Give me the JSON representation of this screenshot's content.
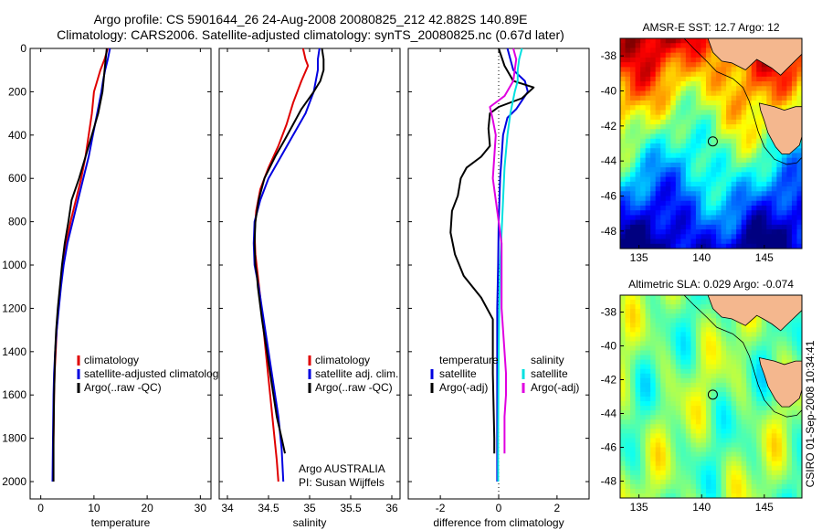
{
  "header": {
    "line1": "Argo profile: CS 5901644_26 24-Aug-2008 20080825_212 42.882S 140.89E",
    "line2": "Climatology: CARS2006. Satellite-adjusted climatology: synTS_20080825.nc (0.67d later)"
  },
  "colors": {
    "climatology": "#e00000",
    "satellite": "#0000e0",
    "argo": "#000000",
    "sal_satellite": "#00e0e0",
    "sal_argo": "#e000e0",
    "land": "#f4b78e"
  },
  "side_text": "CSIRO 01-Sep-2008 10:34:41",
  "chart_data": [
    {
      "type": "line",
      "name": "temperature-profile",
      "xlabel": "temperature",
      "ylabel": "",
      "xlim": [
        -2,
        32
      ],
      "ylim": [
        2080,
        0
      ],
      "xticks": [
        0,
        10,
        20,
        30
      ],
      "yticks": [
        0,
        200,
        400,
        600,
        800,
        1000,
        1200,
        1400,
        1600,
        1800,
        2000
      ],
      "legend": {
        "position": "lower-right",
        "entries": [
          "climatology",
          "satellite-adjusted climatology",
          "Argo(..raw -QC)"
        ]
      },
      "series": [
        {
          "name": "climatology",
          "color": "climatology",
          "points": [
            [
              12.6,
              0
            ],
            [
              12.0,
              50
            ],
            [
              11.2,
              100
            ],
            [
              10.6,
              150
            ],
            [
              10.0,
              200
            ],
            [
              9.6,
              300
            ],
            [
              9.0,
              400
            ],
            [
              8.4,
              500
            ],
            [
              7.6,
              600
            ],
            [
              6.6,
              700
            ],
            [
              5.6,
              800
            ],
            [
              4.8,
              900
            ],
            [
              4.2,
              1000
            ],
            [
              3.7,
              1100
            ],
            [
              3.3,
              1200
            ],
            [
              3.0,
              1300
            ],
            [
              2.8,
              1400
            ],
            [
              2.6,
              1500
            ],
            [
              2.5,
              1600
            ],
            [
              2.4,
              1800
            ],
            [
              2.3,
              2000
            ]
          ]
        },
        {
          "name": "satellite-adjusted climatology",
          "color": "satellite",
          "points": [
            [
              13.0,
              0
            ],
            [
              12.6,
              50
            ],
            [
              12.1,
              100
            ],
            [
              11.7,
              150
            ],
            [
              11.4,
              200
            ],
            [
              10.6,
              300
            ],
            [
              9.8,
              400
            ],
            [
              9.0,
              500
            ],
            [
              8.0,
              600
            ],
            [
              7.0,
              700
            ],
            [
              6.0,
              800
            ],
            [
              5.0,
              900
            ],
            [
              4.3,
              1000
            ],
            [
              3.8,
              1100
            ],
            [
              3.4,
              1200
            ],
            [
              3.0,
              1300
            ],
            [
              2.7,
              1400
            ],
            [
              2.5,
              1500
            ],
            [
              2.4,
              1600
            ],
            [
              2.3,
              1800
            ],
            [
              2.2,
              2000
            ]
          ]
        },
        {
          "name": "Argo(..raw -QC)",
          "color": "argo",
          "points": [
            [
              12.4,
              0
            ],
            [
              12.2,
              50
            ],
            [
              12.0,
              100
            ],
            [
              11.8,
              150
            ],
            [
              11.6,
              200
            ],
            [
              10.8,
              300
            ],
            [
              9.6,
              400
            ],
            [
              8.4,
              500
            ],
            [
              7.2,
              600
            ],
            [
              5.8,
              700
            ],
            [
              5.2,
              800
            ],
            [
              4.5,
              900
            ],
            [
              4.0,
              1000
            ],
            [
              3.6,
              1100
            ],
            [
              3.2,
              1200
            ],
            [
              2.9,
              1300
            ],
            [
              2.7,
              1400
            ],
            [
              2.6,
              1500
            ],
            [
              2.5,
              1600
            ],
            [
              2.4,
              1800
            ],
            [
              2.4,
              2000
            ]
          ]
        }
      ]
    },
    {
      "type": "line",
      "name": "salinity-profile",
      "xlabel": "salinity",
      "ylabel": "",
      "xlim": [
        33.9,
        36.1
      ],
      "ylim": [
        2080,
        0
      ],
      "xticks": [
        34,
        34.5,
        35,
        35.5,
        36
      ],
      "xticklabels": [
        "34",
        "34.5",
        "35",
        "35.5",
        "36"
      ],
      "legend": {
        "position": "lower-right",
        "entries": [
          "climatology",
          "satellite adj. clim.",
          "Argo(..raw -QC)"
        ]
      },
      "annotation_lines": [
        "Argo AUSTRALIA",
        "PI: Susan Wijffels"
      ],
      "series": [
        {
          "name": "climatology",
          "color": "climatology",
          "points": [
            [
              34.92,
              0
            ],
            [
              34.95,
              50
            ],
            [
              34.98,
              80
            ],
            [
              34.9,
              150
            ],
            [
              34.8,
              250
            ],
            [
              34.72,
              350
            ],
            [
              34.62,
              450
            ],
            [
              34.5,
              550
            ],
            [
              34.4,
              650
            ],
            [
              34.35,
              750
            ],
            [
              34.33,
              850
            ],
            [
              34.34,
              950
            ],
            [
              34.37,
              1050
            ],
            [
              34.4,
              1150
            ],
            [
              34.44,
              1300
            ],
            [
              34.48,
              1450
            ],
            [
              34.52,
              1600
            ],
            [
              34.56,
              1750
            ],
            [
              34.6,
              1900
            ],
            [
              34.62,
              2000
            ]
          ]
        },
        {
          "name": "satellite adj. clim.",
          "color": "satellite",
          "points": [
            [
              35.12,
              0
            ],
            [
              35.1,
              50
            ],
            [
              35.1,
              100
            ],
            [
              35.05,
              200
            ],
            [
              34.95,
              300
            ],
            [
              34.8,
              400
            ],
            [
              34.65,
              500
            ],
            [
              34.5,
              600
            ],
            [
              34.4,
              700
            ],
            [
              34.33,
              800
            ],
            [
              34.32,
              900
            ],
            [
              34.33,
              1000
            ],
            [
              34.38,
              1100
            ],
            [
              34.44,
              1250
            ],
            [
              34.5,
              1400
            ],
            [
              34.56,
              1550
            ],
            [
              34.62,
              1700
            ],
            [
              34.66,
              1850
            ],
            [
              34.68,
              2000
            ]
          ]
        },
        {
          "name": "Argo(..raw -QC)",
          "color": "argo",
          "points": [
            [
              35.15,
              0
            ],
            [
              35.17,
              50
            ],
            [
              35.17,
              100
            ],
            [
              35.13,
              150
            ],
            [
              35.05,
              200
            ],
            [
              34.9,
              280
            ],
            [
              34.8,
              350
            ],
            [
              34.7,
              420
            ],
            [
              34.58,
              500
            ],
            [
              34.45,
              600
            ],
            [
              34.38,
              700
            ],
            [
              34.34,
              800
            ],
            [
              34.33,
              900
            ],
            [
              34.34,
              1000
            ],
            [
              34.36,
              1050
            ],
            [
              34.37,
              1100
            ],
            [
              34.42,
              1250
            ],
            [
              34.48,
              1400
            ],
            [
              34.54,
              1550
            ],
            [
              34.6,
              1700
            ],
            [
              34.66,
              1800
            ],
            [
              34.7,
              1870
            ]
          ]
        }
      ]
    },
    {
      "type": "line",
      "name": "difference-profile",
      "xlabel": "difference from climatology",
      "ylabel": "",
      "xlim": [
        -3.1,
        3.1
      ],
      "ylim": [
        2080,
        0
      ],
      "xticks": [
        -2,
        0,
        2
      ],
      "legend": {
        "position": "lower-center",
        "columns": [
          {
            "heading": "temperature",
            "entries": [
              "satellite",
              "Argo(-adj)"
            ]
          },
          {
            "heading": "salinity",
            "entries": [
              "satellite",
              "Argo(-adj)"
            ]
          }
        ]
      },
      "series": [
        {
          "name": "temperature satellite",
          "color": "satellite",
          "points": [
            [
              0.3,
              0
            ],
            [
              0.4,
              50
            ],
            [
              0.5,
              100
            ],
            [
              0.9,
              150
            ],
            [
              1.0,
              200
            ],
            [
              0.6,
              280
            ],
            [
              0.3,
              320
            ],
            [
              0.15,
              400
            ],
            [
              0.1,
              500
            ],
            [
              0.05,
              600
            ],
            [
              0.0,
              800
            ],
            [
              -0.02,
              1000
            ],
            [
              -0.05,
              1200
            ],
            [
              -0.05,
              1400
            ],
            [
              -0.05,
              1600
            ],
            [
              -0.05,
              1800
            ],
            [
              -0.05,
              2000
            ]
          ]
        },
        {
          "name": "temperature Argo(-adj)",
          "color": "argo",
          "points": [
            [
              0.0,
              0
            ],
            [
              0.2,
              80
            ],
            [
              0.5,
              150
            ],
            [
              1.2,
              180
            ],
            [
              0.8,
              230
            ],
            [
              0.0,
              270
            ],
            [
              -0.3,
              300
            ],
            [
              -0.35,
              370
            ],
            [
              -0.3,
              450
            ],
            [
              -0.6,
              500
            ],
            [
              -1.1,
              550
            ],
            [
              -1.3,
              600
            ],
            [
              -1.4,
              680
            ],
            [
              -1.6,
              750
            ],
            [
              -1.65,
              850
            ],
            [
              -1.5,
              950
            ],
            [
              -1.2,
              1050
            ],
            [
              -0.6,
              1150
            ],
            [
              -0.2,
              1250
            ],
            [
              -0.2,
              1500
            ],
            [
              -0.15,
              1800
            ],
            [
              -0.15,
              1870
            ]
          ]
        },
        {
          "name": "salinity satellite",
          "color": "sal_satellite",
          "points": [
            [
              0.8,
              0
            ],
            [
              0.7,
              50
            ],
            [
              0.65,
              100
            ],
            [
              0.65,
              150
            ],
            [
              0.55,
              200
            ],
            [
              0.4,
              300
            ],
            [
              0.3,
              400
            ],
            [
              0.2,
              550
            ],
            [
              0.15,
              700
            ],
            [
              0.1,
              850
            ],
            [
              0.05,
              1000
            ],
            [
              0.02,
              1200
            ],
            [
              0.0,
              1400
            ],
            [
              -0.01,
              1600
            ],
            [
              -0.02,
              1800
            ],
            [
              -0.02,
              2000
            ]
          ]
        },
        {
          "name": "salinity Argo(-adj)",
          "color": "sal_argo",
          "points": [
            [
              0.5,
              0
            ],
            [
              0.6,
              50
            ],
            [
              0.55,
              100
            ],
            [
              0.5,
              150
            ],
            [
              0.2,
              220
            ],
            [
              -0.3,
              270
            ],
            [
              -0.2,
              330
            ],
            [
              -0.1,
              400
            ],
            [
              -0.15,
              500
            ],
            [
              -0.2,
              600
            ],
            [
              -0.1,
              700
            ],
            [
              0.0,
              800
            ],
            [
              0.1,
              900
            ],
            [
              0.1,
              1000
            ],
            [
              0.1,
              1100
            ],
            [
              0.1,
              1200
            ],
            [
              0.15,
              1300
            ],
            [
              0.2,
              1400
            ],
            [
              0.25,
              1500
            ],
            [
              0.25,
              1600
            ],
            [
              0.2,
              1700
            ],
            [
              0.2,
              1870
            ]
          ]
        }
      ]
    },
    {
      "type": "heatmap",
      "name": "sst-map",
      "title": "AMSR-E SST: 12.7 Argo: 12",
      "xlim": [
        133.5,
        148
      ],
      "ylim": [
        -49,
        -37
      ],
      "xticks": [
        135,
        140,
        145
      ],
      "yticks": [
        -38,
        -40,
        -42,
        -44,
        -46,
        -48
      ],
      "colormap": "jet",
      "marker": {
        "lon": 140.89,
        "lat": -42.882
      }
    },
    {
      "type": "heatmap",
      "name": "sla-map",
      "title": "Altimetric SLA: 0.029 Argo: -0.074",
      "xlim": [
        133.5,
        148
      ],
      "ylim": [
        -49,
        -37
      ],
      "xticks": [
        135,
        140,
        145
      ],
      "yticks": [
        -38,
        -40,
        -42,
        -44,
        -46,
        -48
      ],
      "colormap": "jet",
      "marker": {
        "lon": 140.89,
        "lat": -42.882
      }
    }
  ]
}
